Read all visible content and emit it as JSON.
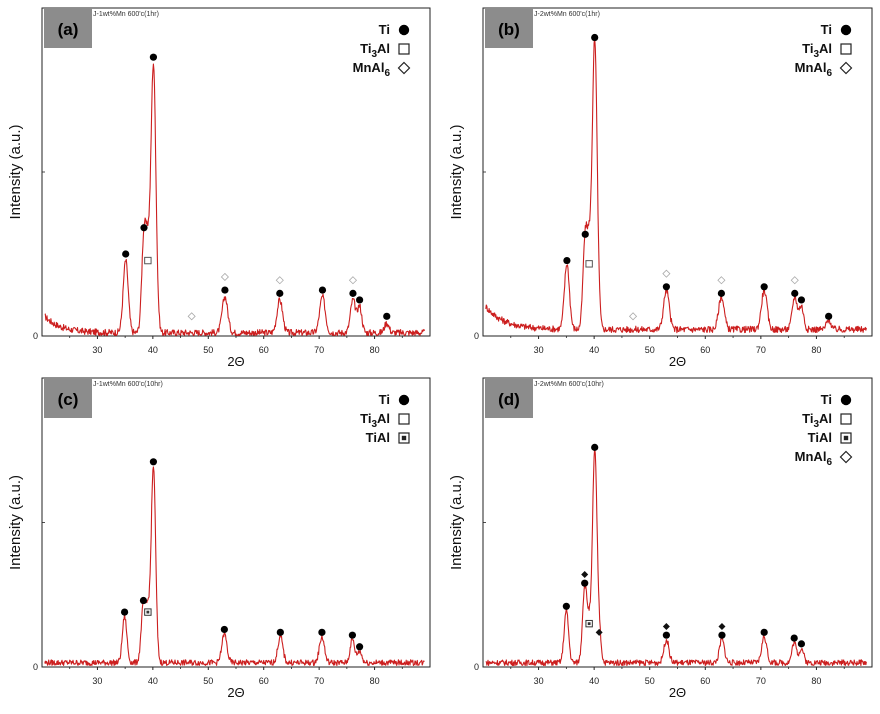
{
  "chart_data": [
    {
      "type": "line",
      "panel_label": "(a)",
      "sample_label": "J-1wt%Mn 600'c(1hr)",
      "xlabel": "2Θ",
      "ylabel": "Intensity (a.u.)",
      "xlim": [
        20,
        90
      ],
      "ylim": [
        0,
        100
      ],
      "x_ticks": [
        "30",
        "40",
        "50",
        "60",
        "70",
        "80"
      ],
      "y_ticks": [
        "0"
      ],
      "legend": [
        {
          "label": "Ti",
          "marker": "filled-circle"
        },
        {
          "label": "Ti3Al",
          "marker": "open-square"
        },
        {
          "label": "MnAl6",
          "marker": "open-diamond"
        }
      ],
      "baseline": {
        "start": 6,
        "decay": 0.35,
        "end": 1
      },
      "peaks": [
        {
          "x": 35.1,
          "y": 22,
          "w": 0.45
        },
        {
          "x": 38.4,
          "y": 30,
          "w": 0.4
        },
        {
          "x": 39.1,
          "y": 20,
          "w": 0.35
        },
        {
          "x": 40.1,
          "y": 82,
          "w": 0.45
        },
        {
          "x": 53.0,
          "y": 11,
          "w": 0.5
        },
        {
          "x": 62.9,
          "y": 10,
          "w": 0.5
        },
        {
          "x": 70.6,
          "y": 11,
          "w": 0.5
        },
        {
          "x": 76.1,
          "y": 10,
          "w": 0.45
        },
        {
          "x": 77.3,
          "y": 8,
          "w": 0.4
        },
        {
          "x": 82.2,
          "y": 3,
          "w": 0.4
        }
      ],
      "markers": [
        {
          "x": 35.1,
          "y": 25,
          "type": "filled-circle"
        },
        {
          "x": 38.4,
          "y": 33,
          "type": "filled-circle"
        },
        {
          "x": 39.1,
          "y": 23,
          "type": "open-square"
        },
        {
          "x": 40.1,
          "y": 85,
          "type": "filled-circle"
        },
        {
          "x": 47.0,
          "y": 6,
          "type": "open-diamond"
        },
        {
          "x": 53.0,
          "y": 14,
          "type": "filled-circle"
        },
        {
          "x": 53.0,
          "y": 18,
          "type": "open-diamond"
        },
        {
          "x": 62.9,
          "y": 13,
          "type": "filled-circle"
        },
        {
          "x": 62.9,
          "y": 17,
          "type": "open-diamond"
        },
        {
          "x": 70.6,
          "y": 14,
          "type": "filled-circle"
        },
        {
          "x": 76.1,
          "y": 13,
          "type": "filled-circle"
        },
        {
          "x": 76.1,
          "y": 17,
          "type": "open-diamond"
        },
        {
          "x": 77.3,
          "y": 11,
          "type": "filled-circle"
        },
        {
          "x": 82.2,
          "y": 6,
          "type": "filled-circle"
        }
      ]
    },
    {
      "type": "line",
      "panel_label": "(b)",
      "sample_label": "J-2wt%Mn 600'c(1hr)",
      "xlabel": "2Θ",
      "ylabel": "Intensity (a.u.)",
      "xlim": [
        20,
        90
      ],
      "ylim": [
        0,
        100
      ],
      "x_ticks": [
        "30",
        "40",
        "50",
        "60",
        "70",
        "80"
      ],
      "y_ticks": [
        "0"
      ],
      "legend": [
        {
          "label": "Ti",
          "marker": "filled-circle"
        },
        {
          "label": "Ti3Al",
          "marker": "open-square"
        },
        {
          "label": "MnAl6",
          "marker": "open-diamond"
        }
      ],
      "baseline": {
        "start": 9,
        "decay": 0.3,
        "end": 2
      },
      "peaks": [
        {
          "x": 35.1,
          "y": 20,
          "w": 0.45
        },
        {
          "x": 38.4,
          "y": 28,
          "w": 0.4
        },
        {
          "x": 39.1,
          "y": 19,
          "w": 0.35
        },
        {
          "x": 40.1,
          "y": 88,
          "w": 0.45
        },
        {
          "x": 53.0,
          "y": 12,
          "w": 0.5
        },
        {
          "x": 62.9,
          "y": 10,
          "w": 0.5
        },
        {
          "x": 70.6,
          "y": 12,
          "w": 0.5
        },
        {
          "x": 76.1,
          "y": 10,
          "w": 0.45
        },
        {
          "x": 77.3,
          "y": 7,
          "w": 0.4
        },
        {
          "x": 82.2,
          "y": 3,
          "w": 0.4
        }
      ],
      "markers": [
        {
          "x": 35.1,
          "y": 23,
          "type": "filled-circle"
        },
        {
          "x": 38.4,
          "y": 31,
          "type": "filled-circle"
        },
        {
          "x": 39.1,
          "y": 22,
          "type": "open-square"
        },
        {
          "x": 40.1,
          "y": 91,
          "type": "filled-circle"
        },
        {
          "x": 47.0,
          "y": 6,
          "type": "open-diamond"
        },
        {
          "x": 53.0,
          "y": 15,
          "type": "filled-circle"
        },
        {
          "x": 53.0,
          "y": 19,
          "type": "open-diamond"
        },
        {
          "x": 62.9,
          "y": 13,
          "type": "filled-circle"
        },
        {
          "x": 62.9,
          "y": 17,
          "type": "open-diamond"
        },
        {
          "x": 70.6,
          "y": 15,
          "type": "filled-circle"
        },
        {
          "x": 76.1,
          "y": 13,
          "type": "filled-circle"
        },
        {
          "x": 76.1,
          "y": 17,
          "type": "open-diamond"
        },
        {
          "x": 77.3,
          "y": 11,
          "type": "filled-circle"
        },
        {
          "x": 82.2,
          "y": 6,
          "type": "filled-circle"
        }
      ]
    },
    {
      "type": "line",
      "panel_label": "(c)",
      "sample_label": "J-1wt%Mn 600'c(10hr)",
      "xlabel": "2Θ",
      "ylabel": "Intensity (a.u.)",
      "xlim": [
        20,
        90
      ],
      "ylim": [
        0,
        100
      ],
      "x_ticks": [
        "30",
        "40",
        "50",
        "60",
        "70",
        "80"
      ],
      "y_ticks": [
        "0"
      ],
      "legend": [
        {
          "label": "Ti",
          "marker": "filled-circle"
        },
        {
          "label": "Ti3Al",
          "marker": "open-square"
        },
        {
          "label": "TiAl",
          "marker": "dotted-square"
        }
      ],
      "baseline": {
        "start": 1.5,
        "decay": 0,
        "end": 1.5
      },
      "peaks": [
        {
          "x": 34.9,
          "y": 16,
          "w": 0.4
        },
        {
          "x": 38.3,
          "y": 20,
          "w": 0.4
        },
        {
          "x": 39.1,
          "y": 16,
          "w": 0.35
        },
        {
          "x": 40.1,
          "y": 68,
          "w": 0.4
        },
        {
          "x": 52.9,
          "y": 10,
          "w": 0.45
        },
        {
          "x": 63.0,
          "y": 9,
          "w": 0.45
        },
        {
          "x": 70.5,
          "y": 9,
          "w": 0.45
        },
        {
          "x": 76.0,
          "y": 8,
          "w": 0.4
        },
        {
          "x": 77.3,
          "y": 4,
          "w": 0.4
        }
      ],
      "markers": [
        {
          "x": 34.9,
          "y": 19,
          "type": "filled-circle"
        },
        {
          "x": 38.3,
          "y": 23,
          "type": "filled-circle"
        },
        {
          "x": 39.1,
          "y": 19,
          "type": "dotted-square"
        },
        {
          "x": 40.1,
          "y": 71,
          "type": "filled-circle"
        },
        {
          "x": 52.9,
          "y": 13,
          "type": "filled-circle"
        },
        {
          "x": 63.0,
          "y": 12,
          "type": "filled-circle"
        },
        {
          "x": 70.5,
          "y": 12,
          "type": "filled-circle"
        },
        {
          "x": 76.0,
          "y": 11,
          "type": "filled-circle"
        },
        {
          "x": 77.3,
          "y": 7,
          "type": "filled-circle"
        }
      ]
    },
    {
      "type": "line",
      "panel_label": "(d)",
      "sample_label": "J-2wt%Mn 600'c(10hr)",
      "xlabel": "2Θ",
      "ylabel": "Intensity (a.u.)",
      "xlim": [
        20,
        90
      ],
      "ylim": [
        0,
        100
      ],
      "x_ticks": [
        "30",
        "40",
        "50",
        "60",
        "70",
        "80"
      ],
      "y_ticks": [
        "0"
      ],
      "legend": [
        {
          "label": "Ti",
          "marker": "filled-circle"
        },
        {
          "label": "Ti3Al",
          "marker": "open-square"
        },
        {
          "label": "TiAl",
          "marker": "dotted-square"
        },
        {
          "label": "MnAl6",
          "marker": "filled-diamond"
        }
      ],
      "baseline": {
        "start": 1.5,
        "decay": 0,
        "end": 1.5
      },
      "peaks": [
        {
          "x": 35.0,
          "y": 18,
          "w": 0.4
        },
        {
          "x": 38.3,
          "y": 26,
          "w": 0.4
        },
        {
          "x": 39.1,
          "y": 12,
          "w": 0.35
        },
        {
          "x": 40.1,
          "y": 73,
          "w": 0.4
        },
        {
          "x": 40.9,
          "y": 10,
          "w": 0.35
        },
        {
          "x": 53.0,
          "y": 8,
          "w": 0.45
        },
        {
          "x": 63.0,
          "y": 8,
          "w": 0.45
        },
        {
          "x": 70.6,
          "y": 9,
          "w": 0.45
        },
        {
          "x": 76.0,
          "y": 7,
          "w": 0.4
        },
        {
          "x": 77.3,
          "y": 5,
          "w": 0.4
        }
      ],
      "markers": [
        {
          "x": 35.0,
          "y": 21,
          "type": "filled-circle"
        },
        {
          "x": 38.3,
          "y": 29,
          "type": "filled-circle"
        },
        {
          "x": 38.3,
          "y": 32,
          "type": "filled-diamond"
        },
        {
          "x": 39.1,
          "y": 15,
          "type": "dotted-square"
        },
        {
          "x": 40.1,
          "y": 76,
          "type": "filled-circle"
        },
        {
          "x": 40.9,
          "y": 12,
          "type": "filled-diamond"
        },
        {
          "x": 53.0,
          "y": 11,
          "type": "filled-circle"
        },
        {
          "x": 53.0,
          "y": 14,
          "type": "filled-diamond"
        },
        {
          "x": 63.0,
          "y": 11,
          "type": "filled-circle"
        },
        {
          "x": 63.0,
          "y": 14,
          "type": "filled-diamond"
        },
        {
          "x": 70.6,
          "y": 12,
          "type": "filled-circle"
        },
        {
          "x": 76.0,
          "y": 10,
          "type": "filled-circle"
        },
        {
          "x": 77.3,
          "y": 8,
          "type": "filled-circle"
        }
      ]
    }
  ],
  "colors": {
    "line": "#cc1f1f",
    "label_box": "#8c8c8c",
    "axis": "#222222"
  }
}
